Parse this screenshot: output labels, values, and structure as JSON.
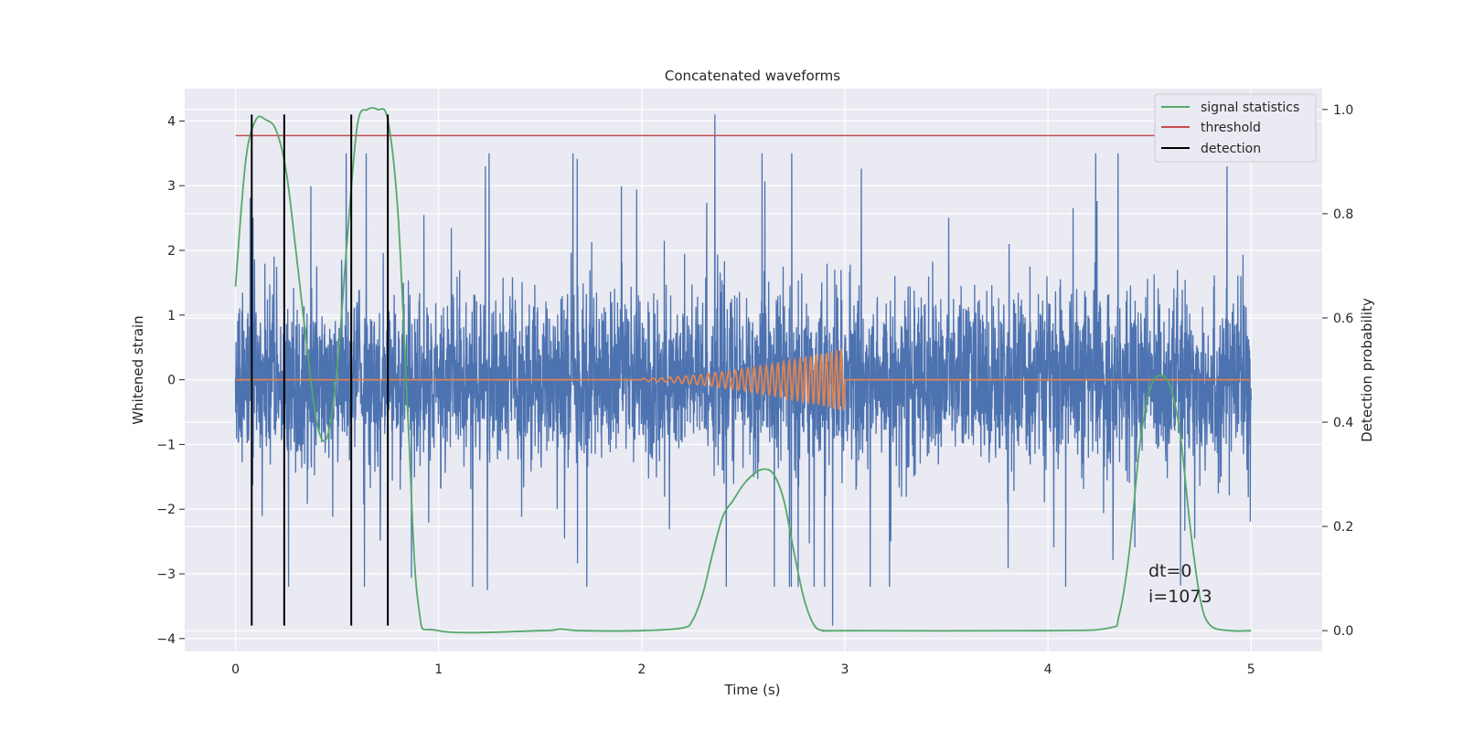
{
  "chart_data": {
    "type": "line",
    "title": "Concatenated waveforms",
    "xlabel": "Time (s)",
    "ylabel": "Whitened strain",
    "ylabel_right": "Detection probability",
    "xlim": [
      -0.25,
      5.35
    ],
    "ylim": [
      -4.2,
      4.5
    ],
    "ylim_right": [
      -0.04,
      1.04
    ],
    "x_ticks": [
      0,
      1,
      2,
      3,
      4,
      5
    ],
    "x_tick_labels": [
      "0",
      "1",
      "2",
      "3",
      "4",
      "5"
    ],
    "y_ticks": [
      -4,
      -3,
      -2,
      -1,
      0,
      1,
      2,
      3,
      4
    ],
    "y_tick_labels": [
      "−4",
      "−3",
      "−2",
      "−1",
      "0",
      "1",
      "2",
      "3",
      "4"
    ],
    "y2_ticks": [
      0.0,
      0.2,
      0.4,
      0.6,
      0.8,
      1.0
    ],
    "y2_tick_labels": [
      "0.0",
      "0.2",
      "0.4",
      "0.6",
      "0.8",
      "1.0"
    ],
    "grid": true,
    "legend_position": "top-right",
    "colors": {
      "strain": "#4c72b0",
      "waveform": "#dd8452",
      "signal_statistics": "#55a868",
      "threshold": "#c44e52",
      "detection": "#000000",
      "background": "#eaeaf2",
      "grid": "#ffffff"
    },
    "series": [
      {
        "name": "signal statistics",
        "axis": "right",
        "x": [
          0,
          0.05,
          0.1,
          0.15,
          0.2,
          0.25,
          0.3,
          0.35,
          0.4,
          0.45,
          0.5,
          0.55,
          0.6,
          0.65,
          0.7,
          0.75,
          0.8,
          0.85,
          0.9,
          1.0,
          1.5,
          1.6,
          1.7,
          2.0,
          2.2,
          2.25,
          2.3,
          2.35,
          2.4,
          2.45,
          2.5,
          2.55,
          2.6,
          2.65,
          2.7,
          2.75,
          2.8,
          2.85,
          2.9,
          3.0,
          4.0,
          4.3,
          4.35,
          4.4,
          4.45,
          4.5,
          4.55,
          4.6,
          4.65,
          4.7,
          4.75,
          4.8,
          4.9,
          5.0
        ],
        "y": [
          0.66,
          0.9,
          0.98,
          0.98,
          0.96,
          0.88,
          0.72,
          0.55,
          0.4,
          0.37,
          0.5,
          0.75,
          0.97,
          1.0,
          1.0,
          0.98,
          0.8,
          0.4,
          0.05,
          0.0,
          0.0,
          0.003,
          0.0,
          0.0,
          0.005,
          0.02,
          0.07,
          0.15,
          0.22,
          0.25,
          0.28,
          0.3,
          0.31,
          0.3,
          0.25,
          0.15,
          0.06,
          0.01,
          0.0,
          0.0,
          0.0,
          0.005,
          0.03,
          0.15,
          0.35,
          0.46,
          0.49,
          0.47,
          0.38,
          0.2,
          0.06,
          0.01,
          0.0,
          0.0
        ]
      },
      {
        "name": "threshold",
        "axis": "right",
        "x": [
          0,
          5
        ],
        "y": [
          0.95,
          0.95
        ]
      },
      {
        "name": "detection",
        "axis": "left",
        "x": [
          0.08,
          0.24,
          0.57,
          0.75
        ],
        "y_range": [
          -3.8,
          4.1
        ]
      },
      {
        "name": "",
        "role": "whitened strain noise",
        "axis": "left",
        "x_range": [
          0,
          5
        ],
        "typical_amplitude": 0.65,
        "peak_range": [
          -3.8,
          4.1
        ],
        "spikes": [
          {
            "x": 2.36,
            "y": 4.1
          },
          {
            "x": 2.94,
            "y": -3.8
          },
          {
            "x": 1.24,
            "y": -3.25
          },
          {
            "x": 1.23,
            "y": 3.3
          }
        ]
      },
      {
        "name": "",
        "role": "injected chirp waveform",
        "axis": "left",
        "x_range": [
          2.0,
          3.0
        ],
        "amplitude_start": 0.02,
        "amplitude_end": 0.48
      }
    ],
    "annotations": [
      "dt=0",
      "i=1073"
    ]
  }
}
